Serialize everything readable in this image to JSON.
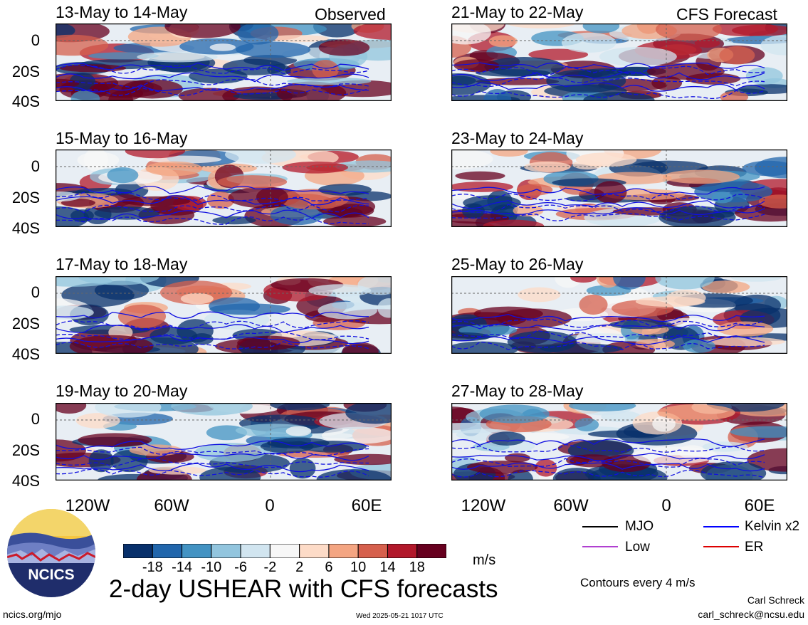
{
  "chart_data": {
    "type": "heatmap",
    "title": "2-day USHEAR with CFS forecasts",
    "columns": [
      {
        "label": "Observed",
        "panels": [
          "13-May to 14-May",
          "15-May to 16-May",
          "17-May to 18-May",
          "19-May to 20-May"
        ]
      },
      {
        "label": "CFS Forecast",
        "panels": [
          "21-May to 22-May",
          "23-May to 24-May",
          "25-May to 26-May",
          "27-May to 28-May"
        ]
      }
    ],
    "y_ticks": [
      "0",
      "20S",
      "40S"
    ],
    "x_ticks": [
      "120W",
      "60W",
      "0",
      "60E"
    ],
    "colorbar": {
      "units": "m/s",
      "ticks": [
        "-18",
        "-14",
        "-10",
        "-6",
        "-2",
        "2",
        "6",
        "10",
        "14",
        "18"
      ],
      "colors": [
        "#08306b",
        "#2166ac",
        "#4393c3",
        "#92c5de",
        "#d1e5f0",
        "#f7f7f7",
        "#fddbc7",
        "#f4a582",
        "#d6604d",
        "#b2182b",
        "#67001f"
      ]
    },
    "legend": [
      {
        "label": "MJO",
        "color": "#000000"
      },
      {
        "label": "Kelvin x2",
        "color": "#0000ff"
      },
      {
        "label": "Low",
        "color": "#b040d0"
      },
      {
        "label": "ER",
        "color": "#dd0000"
      }
    ],
    "contour_note": "Contours every 4 m/s",
    "author": "Carl Schreck",
    "email": "carl_schreck@ncsu.edu",
    "website": "ncics.org/mjo",
    "timestamp": "Wed 2025-05-21 1017 UTC",
    "logo_text": "NCICS"
  }
}
